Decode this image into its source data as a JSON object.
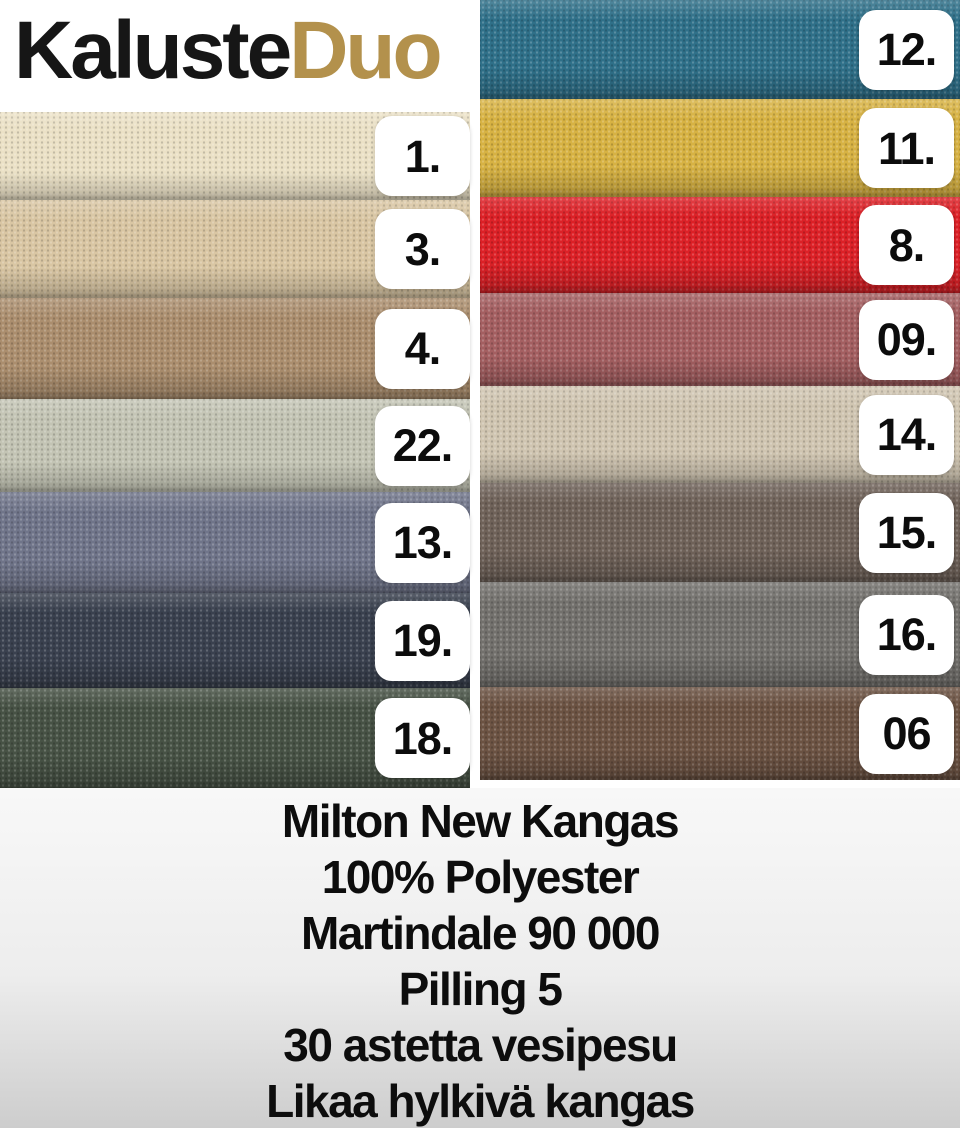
{
  "brand": {
    "name_black": "Kaluste",
    "name_gold": "Duo",
    "gold_color": "#b3914c"
  },
  "swatch_columns": {
    "left": [
      {
        "number": "1.",
        "color": "#ebe1c6",
        "height": 88
      },
      {
        "number": "3.",
        "color": "#d9c6a3",
        "height": 98
      },
      {
        "number": "4.",
        "color": "#ab8e6e",
        "height": 101
      },
      {
        "number": "22.",
        "color": "#c3c4b4",
        "height": 93
      },
      {
        "number": "13.",
        "color": "#70758a",
        "height": 101
      },
      {
        "number": "19.",
        "color": "#3a414f",
        "height": 95
      },
      {
        "number": "18.",
        "color": "#475245",
        "height": 100
      }
    ],
    "right": [
      {
        "number": "12.",
        "color": "#2f7089",
        "height": 99
      },
      {
        "number": "11.",
        "color": "#d7b243",
        "height": 98
      },
      {
        "number": "8.",
        "color": "#dc2127",
        "height": 96
      },
      {
        "number": "09.",
        "color": "#a45f61",
        "height": 93
      },
      {
        "number": "14.",
        "color": "#d0c5b1",
        "height": 97
      },
      {
        "number": "15.",
        "color": "#6f6259",
        "height": 99
      },
      {
        "number": "16.",
        "color": "#73716d",
        "height": 105
      },
      {
        "number": "06",
        "color": "#6c5343",
        "height": 93
      }
    ]
  },
  "footer_lines": [
    "Milton New Kangas",
    "100% Polyester",
    "Martindale 90 000",
    "Pilling 5",
    "30 astetta vesipesu",
    "Likaa hylkivä kangas"
  ]
}
